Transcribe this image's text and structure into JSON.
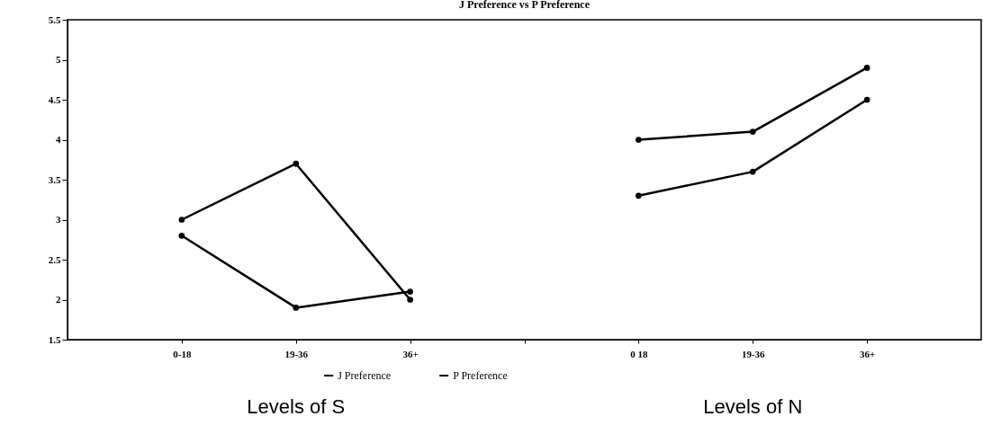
{
  "chart_data": {
    "type": "line",
    "title": "J Preference vs P Preference",
    "categories": [
      "0-18",
      "19-36",
      "36+",
      null,
      "0 18",
      "19-36",
      "36+"
    ],
    "series": [
      {
        "name": "J Preference",
        "color": "#000000",
        "values": [
          3.0,
          3.7,
          2.0,
          null,
          4.0,
          4.1,
          4.9
        ]
      },
      {
        "name": "P Preference",
        "color": "#000000",
        "values": [
          2.8,
          1.9,
          2.1,
          null,
          3.3,
          3.6,
          4.5
        ]
      }
    ],
    "annotations": [
      "Levels of S",
      "Levels of N"
    ],
    "ylim": [
      1.5,
      5.5
    ],
    "yticks": [
      1.5,
      2,
      2.5,
      3,
      3.5,
      4,
      4.5,
      5,
      5.5
    ],
    "grid": false,
    "legend": "bottom",
    "marker": "circle",
    "line_style": "solid"
  }
}
